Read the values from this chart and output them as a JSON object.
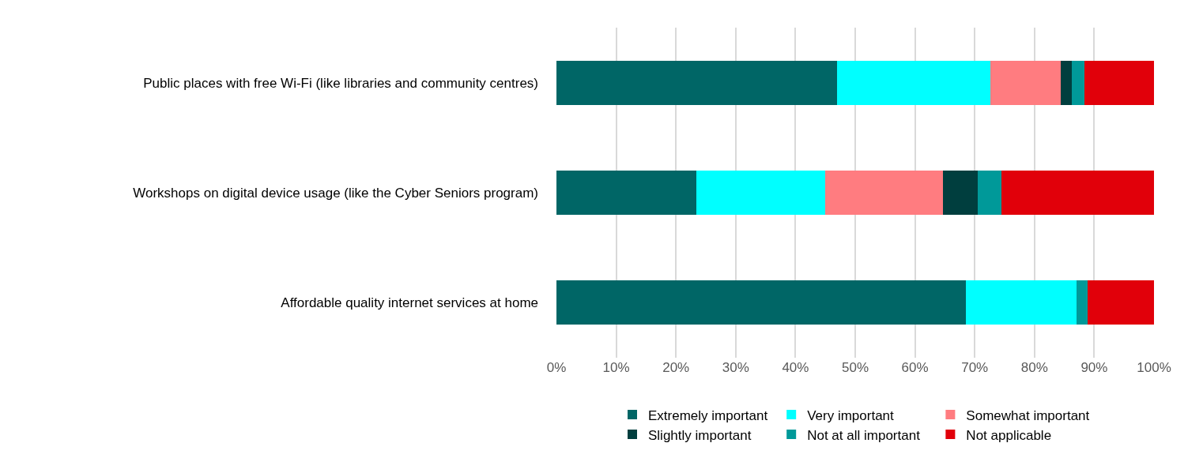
{
  "chart_data": {
    "type": "bar",
    "orientation": "horizontal",
    "stacked": true,
    "categories": [
      "Public places with free Wi-Fi (like libraries and community centres)",
      "Workshops on digital device usage (like the Cyber Seniors program)",
      "Affordable quality internet services at home"
    ],
    "series": [
      {
        "name": "Extremely important",
        "color": "#006666",
        "values": [
          47.0,
          23.4,
          68.5
        ]
      },
      {
        "name": "Very important",
        "color": "#00ffff",
        "values": [
          25.6,
          21.6,
          18.5
        ]
      },
      {
        "name": "Somewhat important",
        "color": "#ff7c80",
        "values": [
          11.8,
          19.7,
          0
        ]
      },
      {
        "name": "Slightly important",
        "color": "#003e3e",
        "values": [
          1.8,
          5.8,
          0
        ]
      },
      {
        "name": "Not at all important",
        "color": "#009999",
        "values": [
          2.1,
          4.0,
          1.9
        ]
      },
      {
        "name": "Not applicable",
        "color": "#e1000a",
        "values": [
          11.7,
          25.5,
          11.1
        ]
      }
    ],
    "xlim": [
      0,
      100
    ],
    "xticks": [
      {
        "value": 0,
        "label": "0%"
      },
      {
        "value": 10,
        "label": "10%"
      },
      {
        "value": 20,
        "label": "20%"
      },
      {
        "value": 30,
        "label": "30%"
      },
      {
        "value": 40,
        "label": "40%"
      },
      {
        "value": 50,
        "label": "50%"
      },
      {
        "value": 60,
        "label": "60%"
      },
      {
        "value": 70,
        "label": "70%"
      },
      {
        "value": 80,
        "label": "80%"
      },
      {
        "value": 90,
        "label": "90%"
      },
      {
        "value": 100,
        "label": "100%"
      }
    ],
    "grid": "x",
    "legend": "bottom"
  }
}
